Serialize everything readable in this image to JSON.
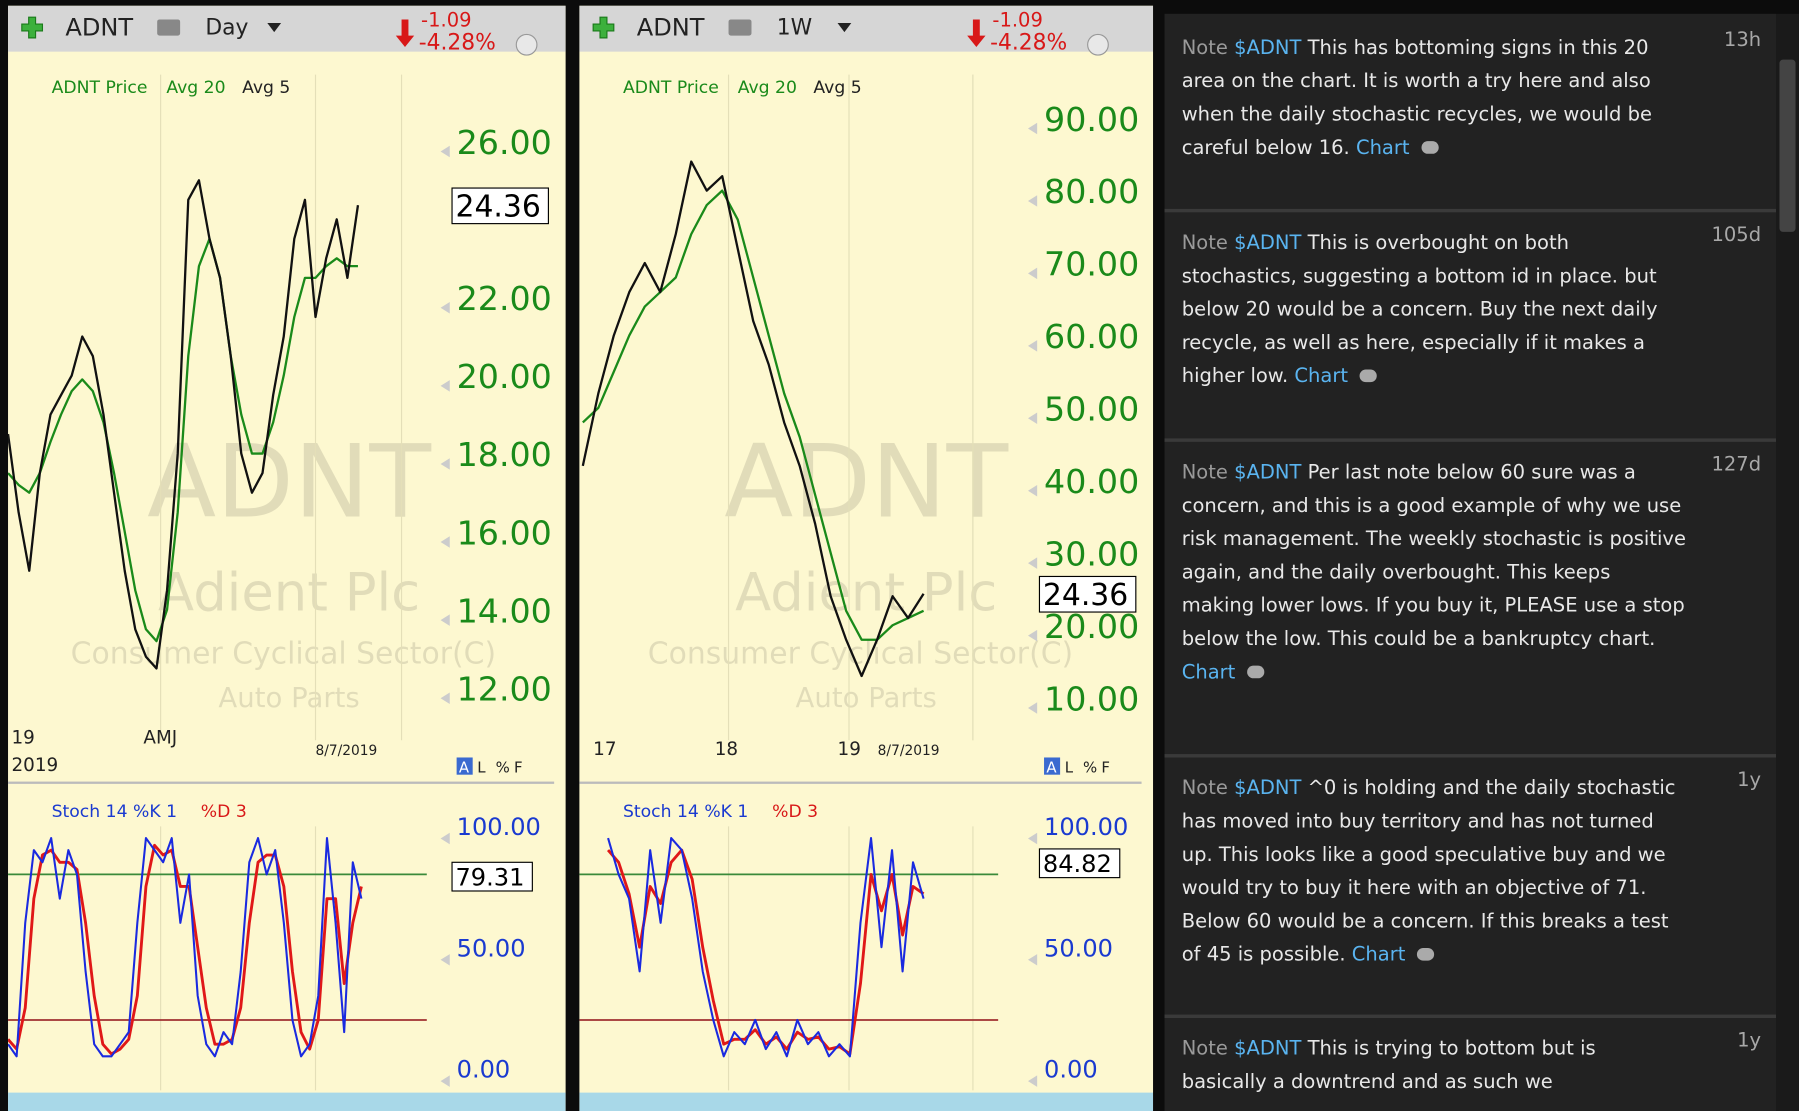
{
  "charts": [
    {
      "symbol": "ADNT",
      "interval": "Day",
      "change": "-1.09",
      "change_pct": "-4.28%",
      "legend": [
        "ADNT Price",
        "Avg 20",
        "Avg 5"
      ],
      "watermark": {
        "symbol": "ADNT",
        "name": "Adient Plc",
        "sector": "Consumer Cyclical Sector(C)",
        "industry": "Auto Parts"
      },
      "ylim": [
        11.1,
        28.0
      ],
      "yticks": [
        {
          "value": 12,
          "label": "12.00"
        },
        {
          "value": 14,
          "label": "14.00"
        },
        {
          "value": 16,
          "label": "16.00"
        },
        {
          "value": 18,
          "label": "18.00"
        },
        {
          "value": 20,
          "label": "20.00"
        },
        {
          "value": 22,
          "label": "22.00"
        },
        {
          "value": 26,
          "label": "26.00"
        }
      ],
      "last_price": 24.36,
      "x_labels": [
        "19",
        "AMJ",
        "8/7/2019"
      ],
      "year_label": "2019",
      "toggles": [
        "A",
        "L",
        "%",
        "F"
      ],
      "price": [
        18.5,
        16.5,
        15.0,
        17.5,
        19.0,
        19.5,
        20.0,
        21.0,
        20.5,
        19.0,
        17.0,
        15.0,
        13.5,
        12.8,
        12.5,
        14.5,
        18.0,
        24.5,
        25.0,
        23.5,
        22.5,
        20.5,
        18.0,
        17.0,
        17.5,
        19.5,
        21.0,
        23.5,
        24.5,
        21.5,
        23.0,
        24.0,
        22.5,
        24.36
      ],
      "avg20": [
        17.5,
        17.2,
        17.0,
        17.5,
        18.3,
        19.0,
        19.6,
        19.9,
        19.6,
        18.8,
        17.5,
        16.0,
        14.5,
        13.5,
        13.2,
        14.0,
        16.5,
        20.5,
        22.8,
        23.5,
        22.5,
        20.5,
        19.0,
        18.0,
        18.0,
        18.8,
        20.0,
        21.5,
        22.5,
        22.5,
        22.8,
        23.0,
        22.8,
        22.8
      ],
      "stoch_legend": [
        "Stoch 14 %K 1",
        "%D 3"
      ],
      "stoch_ylim": [
        -9,
        114
      ],
      "stoch_yticks": [
        {
          "value": 0,
          "label": "0.00"
        },
        {
          "value": 50,
          "label": "50.00"
        },
        {
          "value": 100,
          "label": "100.00"
        }
      ],
      "stoch_levels": [
        80,
        20
      ],
      "stoch_last": 79.31,
      "k": [
        10,
        5,
        60,
        90,
        85,
        95,
        70,
        90,
        80,
        40,
        10,
        5,
        5,
        10,
        15,
        60,
        95,
        90,
        85,
        95,
        60,
        80,
        30,
        10,
        5,
        15,
        10,
        40,
        85,
        95,
        80,
        90,
        60,
        20,
        5,
        10,
        30,
        95,
        60,
        15,
        85,
        70
      ],
      "d": [
        12,
        8,
        25,
        70,
        88,
        90,
        85,
        85,
        82,
        60,
        30,
        10,
        6,
        8,
        12,
        30,
        75,
        92,
        88,
        90,
        75,
        75,
        50,
        25,
        10,
        10,
        12,
        25,
        60,
        85,
        88,
        88,
        75,
        40,
        15,
        8,
        20,
        70,
        70,
        35,
        60,
        75
      ]
    },
    {
      "symbol": "ADNT",
      "interval": "1W",
      "change": "-1.09",
      "change_pct": "-4.28%",
      "legend": [
        "ADNT Price",
        "Avg 20",
        "Avg 5"
      ],
      "watermark": {
        "symbol": "ADNT",
        "name": "Adient Plc",
        "sector": "Consumer Cyclical Sector(C)",
        "industry": "Auto Parts"
      },
      "ylim": [
        6.5,
        97.6
      ],
      "yticks": [
        {
          "value": 10,
          "label": "10.00"
        },
        {
          "value": 20,
          "label": "20.00"
        },
        {
          "value": 30,
          "label": "30.00"
        },
        {
          "value": 40,
          "label": "40.00"
        },
        {
          "value": 50,
          "label": "50.00"
        },
        {
          "value": 60,
          "label": "60.00"
        },
        {
          "value": 70,
          "label": "70.00"
        },
        {
          "value": 80,
          "label": "80.00"
        },
        {
          "value": 90,
          "label": "90.00"
        }
      ],
      "last_price": 24.36,
      "x_labels": [
        "17",
        "18",
        "19",
        "8/7/2019"
      ],
      "toggles": [
        "A",
        "L",
        "%",
        "F"
      ],
      "price": [
        42,
        52,
        60,
        66,
        70,
        66,
        74,
        84,
        80,
        82,
        72,
        62,
        56,
        48,
        42,
        34,
        24,
        18,
        13,
        18,
        24,
        21,
        24.36
      ],
      "avg20": [
        48,
        50,
        55,
        60,
        64,
        66,
        68,
        74,
        78,
        80,
        76,
        68,
        60,
        52,
        46,
        38,
        30,
        22,
        18,
        18,
        20,
        21,
        22
      ],
      "stoch_legend": [
        "Stoch 14 %K 1",
        "%D 3"
      ],
      "stoch_ylim": [
        -9,
        114
      ],
      "stoch_yticks": [
        {
          "value": 0,
          "label": "0.00"
        },
        {
          "value": 50,
          "label": "50.00"
        },
        {
          "value": 100,
          "label": "100.00"
        }
      ],
      "stoch_levels": [
        80,
        20
      ],
      "stoch_last": 84.82,
      "k": [
        95,
        80,
        70,
        40,
        90,
        60,
        95,
        90,
        70,
        40,
        20,
        5,
        15,
        10,
        20,
        8,
        15,
        5,
        20,
        10,
        15,
        5,
        10,
        5,
        60,
        95,
        50,
        90,
        40,
        85,
        70
      ],
      "d": [
        90,
        85,
        72,
        50,
        75,
        68,
        85,
        90,
        78,
        50,
        28,
        10,
        12,
        12,
        16,
        10,
        13,
        8,
        15,
        12,
        13,
        8,
        9,
        6,
        35,
        80,
        65,
        80,
        55,
        75,
        72
      ]
    }
  ],
  "notes": [
    {
      "label": "Note",
      "ticker": "$ADNT",
      "text": "This has bottoming signs in this 20 area on the chart. It is worth a try here and also when the daily stochastic recycles, we would be careful below 16.",
      "link": "Chart",
      "age": "13h"
    },
    {
      "label": "Note",
      "ticker": "$ADNT",
      "text": "This is overbought on both stochastics, suggesting a bottom id in place. but below 20 would be a concern. Buy the next daily recycle, as well as here, especially if it makes a higher low.",
      "link": "Chart",
      "age": "105d"
    },
    {
      "label": "Note",
      "ticker": "$ADNT",
      "text": "Per last note below 60 sure was a concern, and this is a good example of why we use risk management. The weekly stochastic is positive again, and the daily overbought. This keeps making lower lows. If you buy it, PLEASE use a stop below the low. This could be a bankruptcy chart.",
      "link": "Chart",
      "age": "127d"
    },
    {
      "label": "Note",
      "ticker": "$ADNT",
      "text": "^0 is holding and the daily stochastic has moved into buy territory and has not turned up. This looks like a good speculative buy and we would try to buy it here with an objective of 71. Below 60 would be a concern. If this breaks a test of 45 is possible.",
      "link": "Chart",
      "age": "1y"
    },
    {
      "label": "Note",
      "ticker": "$ADNT",
      "text": "This is trying to bottom but is basically a downtrend and as such we",
      "age": "1y"
    }
  ]
}
